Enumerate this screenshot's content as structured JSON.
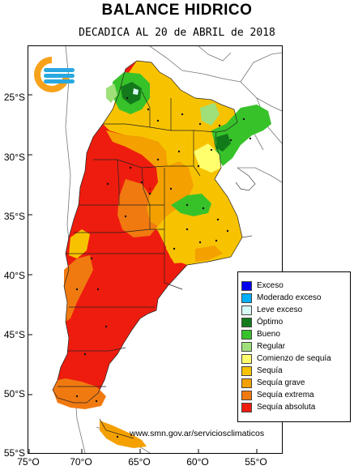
{
  "header": {
    "title": "BALANCE HIDRICO",
    "subtitle": "DECADICA AL 20 de ABRIL de 2018"
  },
  "map": {
    "lat_ticks": [
      "25°S",
      "30°S",
      "35°S",
      "40°S",
      "45°S",
      "50°S",
      "55°S"
    ],
    "lon_ticks": [
      "75°O",
      "70°O",
      "65°O",
      "60°O",
      "55°O"
    ],
    "source_url": "www.smn.gov.ar/serviciosclimaticos"
  },
  "legend": {
    "items": [
      {
        "label": "Exceso",
        "color": "#0000ee"
      },
      {
        "label": "Moderado exceso",
        "color": "#00b0ff"
      },
      {
        "label": "Leve exceso",
        "color": "#d8fbf8"
      },
      {
        "label": "Óptimo",
        "color": "#137a1c"
      },
      {
        "label": "Bueno",
        "color": "#37c22a"
      },
      {
        "label": "Regular",
        "color": "#9fe07a"
      },
      {
        "label": "Comienzo de sequía",
        "color": "#ffff6e"
      },
      {
        "label": "Sequía",
        "color": "#f7c300"
      },
      {
        "label": "Sequía grave",
        "color": "#f4a000"
      },
      {
        "label": "Sequía extrema",
        "color": "#f07a10"
      },
      {
        "label": "Sequía absoluta",
        "color": "#ee1c0e"
      }
    ]
  },
  "colors": {
    "logo_orange": "#f7a21b",
    "logo_blue": "#2aa8e0"
  },
  "icons": {
    "logo": "smn-logo-icon"
  }
}
